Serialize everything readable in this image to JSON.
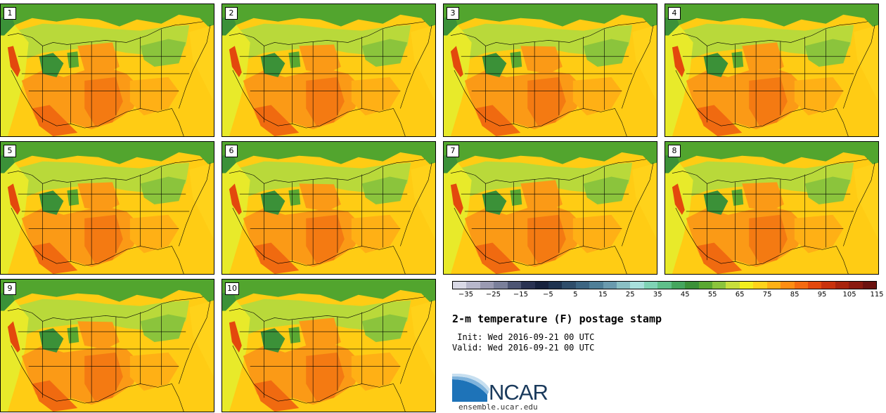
{
  "members": [
    {
      "label": "1"
    },
    {
      "label": "2"
    },
    {
      "label": "3"
    },
    {
      "label": "4"
    },
    {
      "label": "5"
    },
    {
      "label": "6"
    },
    {
      "label": "7"
    },
    {
      "label": "8"
    },
    {
      "label": "9"
    },
    {
      "label": "10"
    }
  ],
  "colorbar": {
    "colors": [
      "#d9d9e6",
      "#b8b8cc",
      "#9a9ab2",
      "#7a7f9a",
      "#4d5573",
      "#2a3352",
      "#17223d",
      "#1e3350",
      "#2f4d6a",
      "#3d6582",
      "#4f7f98",
      "#6a9aae",
      "#8abfc4",
      "#a8e0dc",
      "#7fd3b5",
      "#5fbf8a",
      "#45a65e",
      "#3b9138",
      "#5aa832",
      "#8bc43c",
      "#c8de3c",
      "#f2ee1e",
      "#ffd21a",
      "#ffb015",
      "#ff8d12",
      "#f46a10",
      "#e3480d",
      "#c9320c",
      "#a8240d",
      "#8a1a10",
      "#6b1210"
    ],
    "ticks": [
      "−35",
      "−25",
      "−15",
      "−5",
      "5",
      "15",
      "25",
      "35",
      "45",
      "55",
      "65",
      "75",
      "85",
      "95",
      "105",
      "115"
    ]
  },
  "title": "2-m temperature (F) postage stamp",
  "init": " Init: Wed 2016-09-21 00 UTC",
  "valid": "Valid: Wed 2016-09-21 00 UTC",
  "logo": {
    "text": "NCAR",
    "url": "ensemble.ucar.edu"
  }
}
